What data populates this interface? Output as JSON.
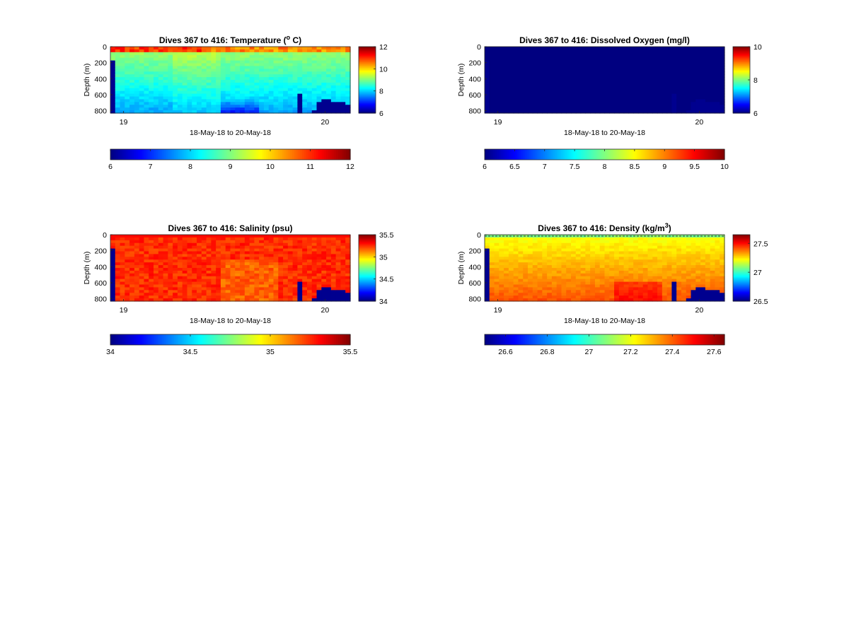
{
  "chart_data": [
    {
      "type": "heatmap",
      "title": "Dives 367 to 416: Temperature (",
      "title_sup": "o",
      "title_tail": " C)",
      "ylabel": "Depth (m)",
      "xlabel": "18-May-18 to 20-May-18",
      "x_ticks": [
        "19",
        "20"
      ],
      "y_ticks": [
        "0",
        "200",
        "400",
        "600",
        "800"
      ],
      "ylim": [
        0,
        830
      ],
      "n_dives": 50,
      "clim": [
        6,
        12
      ],
      "side_colorbar_ticks": [
        "12",
        "10",
        "8",
        "6"
      ],
      "side_colorbar_values": [
        12,
        10,
        8,
        6
      ],
      "bottom_colorbar_ticks": [
        "6",
        "7",
        "8",
        "9",
        "10",
        "11",
        "12"
      ],
      "bottom_colorbar_values": [
        6,
        7,
        8,
        9,
        10,
        11,
        12
      ],
      "field": "temperature"
    },
    {
      "type": "heatmap",
      "title": "Dives 367 to 416: Dissolved Oxygen (mg/l)",
      "title_sup": "",
      "title_tail": "",
      "ylabel": "Depth (m)",
      "xlabel": "18-May-18 to 20-May-18",
      "x_ticks": [
        "19",
        "20"
      ],
      "y_ticks": [
        "0",
        "200",
        "400",
        "600",
        "800"
      ],
      "ylim": [
        0,
        830
      ],
      "n_dives": 50,
      "clim": [
        6,
        10
      ],
      "side_colorbar_ticks": [
        "10",
        "8",
        "6"
      ],
      "side_colorbar_values": [
        10,
        8,
        6
      ],
      "bottom_colorbar_ticks": [
        "6",
        "6.5",
        "7",
        "7.5",
        "8",
        "8.5",
        "9",
        "9.5",
        "10"
      ],
      "bottom_colorbar_values": [
        6,
        6.5,
        7,
        7.5,
        8,
        8.5,
        9,
        9.5,
        10
      ],
      "field": "oxygen"
    },
    {
      "type": "heatmap",
      "title": "Dives 367 to 416: Salinity (psu)",
      "title_sup": "",
      "title_tail": "",
      "ylabel": "Depth (m)",
      "xlabel": "18-May-18 to 20-May-18",
      "x_ticks": [
        "19",
        "20"
      ],
      "y_ticks": [
        "0",
        "200",
        "400",
        "600",
        "800"
      ],
      "ylim": [
        0,
        830
      ],
      "n_dives": 50,
      "clim": [
        34,
        35.5
      ],
      "side_colorbar_ticks": [
        "35.5",
        "35",
        "34.5",
        "34"
      ],
      "side_colorbar_values": [
        35.5,
        35,
        34.5,
        34
      ],
      "bottom_colorbar_ticks": [
        "34",
        "34.5",
        "35",
        "35.5"
      ],
      "bottom_colorbar_values": [
        34,
        34.5,
        35,
        35.5
      ],
      "field": "salinity"
    },
    {
      "type": "heatmap",
      "title": "Dives 367 to 416: Density (kg/m",
      "title_sup": "3",
      "title_tail": ")",
      "ylabel": "Depth (m)",
      "xlabel": "18-May-18 to 20-May-18",
      "x_ticks": [
        "19",
        "20"
      ],
      "y_ticks": [
        "0",
        "200",
        "400",
        "600",
        "800"
      ],
      "ylim": [
        0,
        830
      ],
      "n_dives": 50,
      "clim": [
        26.5,
        27.65
      ],
      "side_colorbar_ticks": [
        "27.5",
        "27",
        "26.5"
      ],
      "side_colorbar_values": [
        27.5,
        27,
        26.5
      ],
      "bottom_colorbar_ticks": [
        "26.6",
        "26.8",
        "27",
        "27.2",
        "27.4",
        "27.6"
      ],
      "bottom_colorbar_values": [
        26.6,
        26.8,
        27,
        27.2,
        27.4,
        27.6
      ],
      "field": "density"
    }
  ],
  "colormap": "jet"
}
